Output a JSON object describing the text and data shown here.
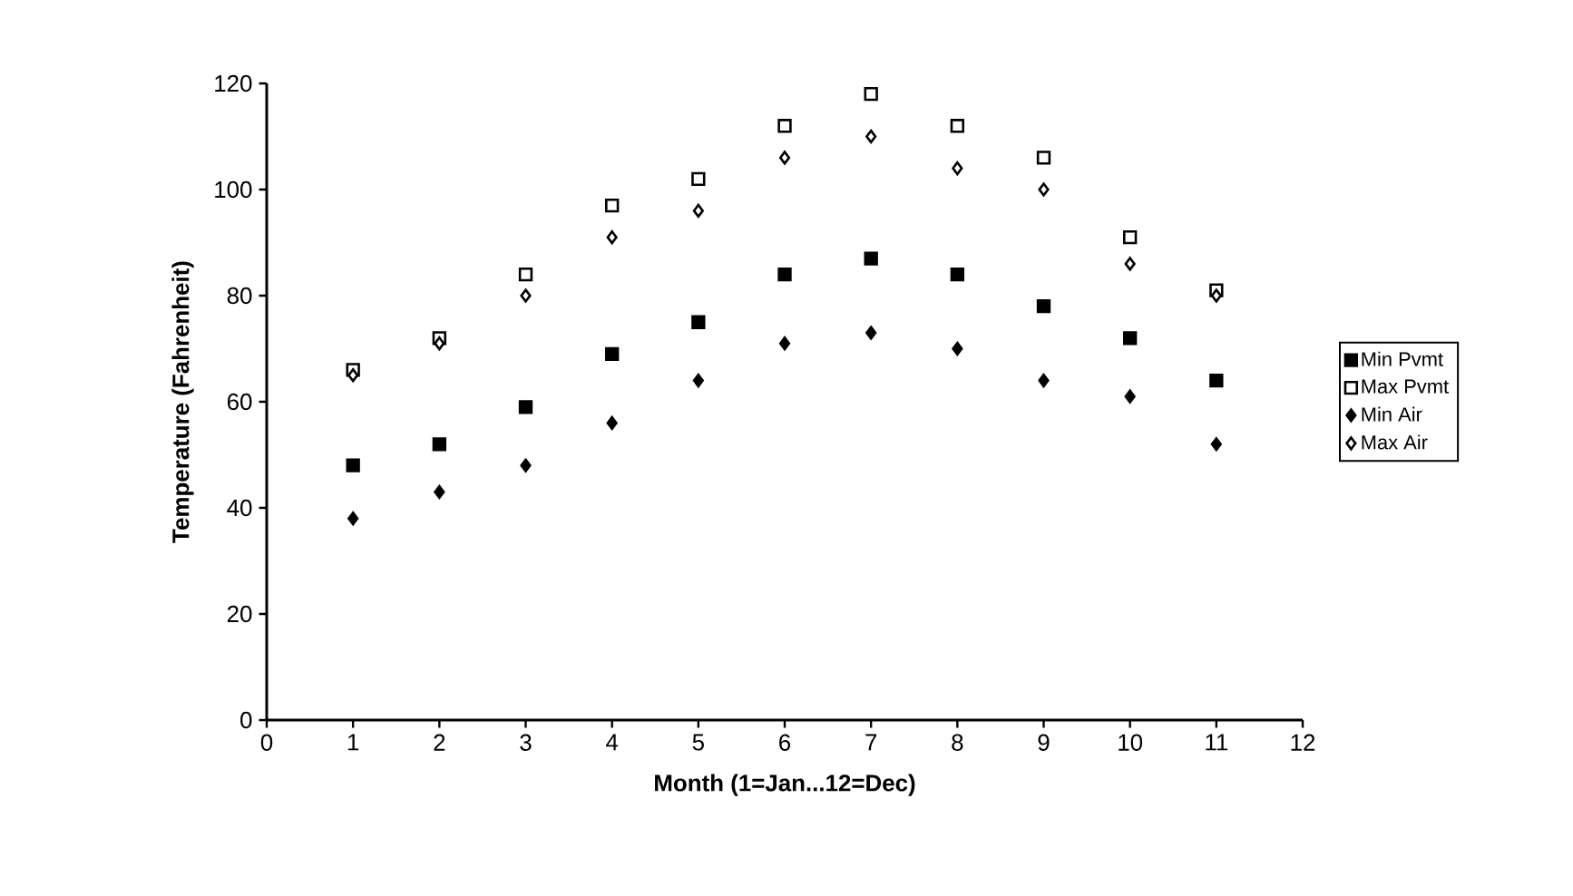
{
  "chart_data": {
    "type": "scatter",
    "xlabel": "Month (1=Jan...12=Dec)",
    "ylabel": "Temperature (Fahrenheit)",
    "x": [
      1,
      2,
      3,
      4,
      5,
      6,
      7,
      8,
      9,
      10,
      11
    ],
    "xlim": [
      0,
      12
    ],
    "xticks": [
      0,
      1,
      2,
      3,
      4,
      5,
      6,
      7,
      8,
      9,
      10,
      11,
      12
    ],
    "ylim": [
      0,
      120
    ],
    "yticks": [
      0,
      20,
      40,
      60,
      80,
      100,
      120
    ],
    "legend": "right",
    "series": [
      {
        "name": "Min Pvmt",
        "color": "#000000",
        "marker": "square",
        "values": [
          48,
          52,
          59,
          69,
          75,
          84,
          87,
          84,
          78,
          72,
          64
        ]
      },
      {
        "name": "Max Pvmt",
        "color": "#000000",
        "marker": "square",
        "values": [
          66,
          72,
          84,
          97,
          102,
          112,
          118,
          112,
          106,
          91,
          81
        ]
      },
      {
        "name": "Min Air",
        "color": "#000000",
        "marker": "diamond",
        "values": [
          38,
          43,
          48,
          56,
          64,
          71,
          73,
          70,
          64,
          61,
          52
        ]
      },
      {
        "name": "Max Air",
        "color": "#000000",
        "marker": "diamond",
        "values": [
          65,
          71,
          80,
          91,
          96,
          106,
          110,
          104,
          100,
          86,
          80
        ]
      }
    ]
  }
}
